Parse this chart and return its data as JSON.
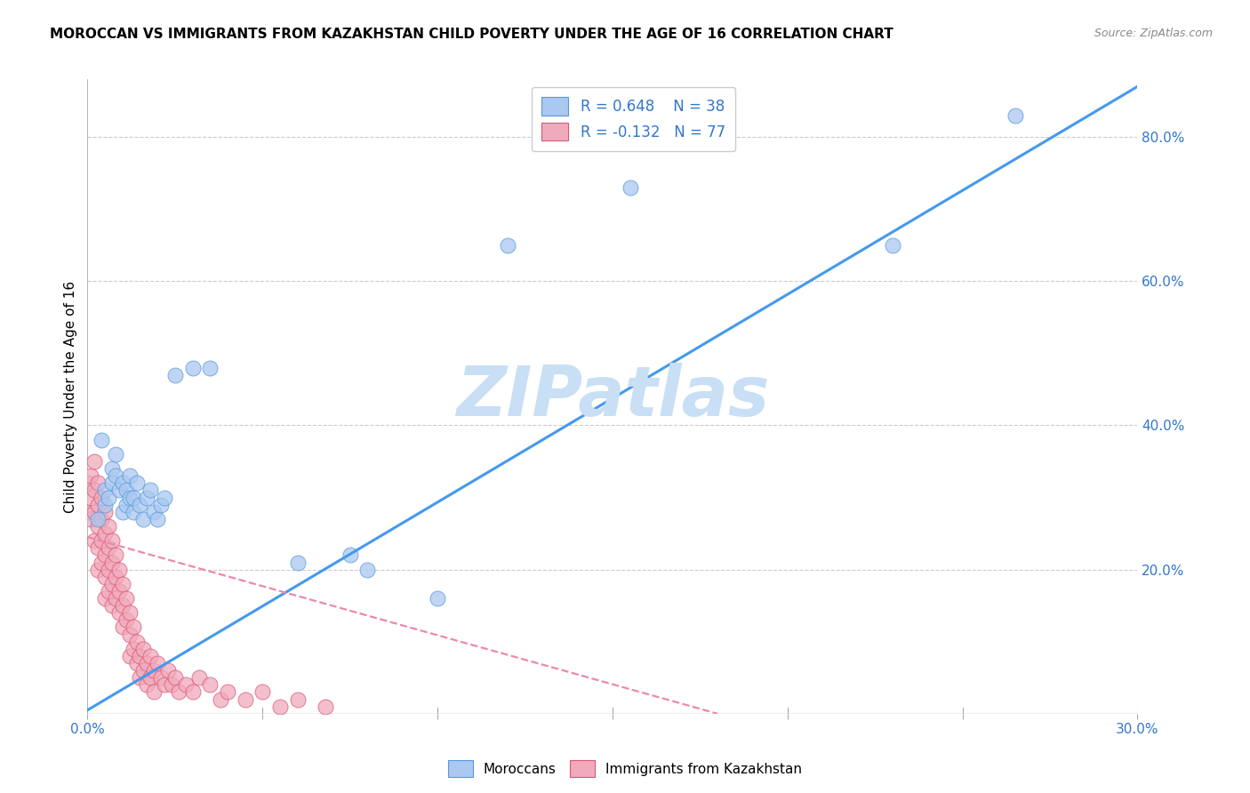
{
  "title": "MOROCCAN VS IMMIGRANTS FROM KAZAKHSTAN CHILD POVERTY UNDER THE AGE OF 16 CORRELATION CHART",
  "source": "Source: ZipAtlas.com",
  "ylabel": "Child Poverty Under the Age of 16",
  "x_min": 0.0,
  "x_max": 0.3,
  "y_min": 0.0,
  "y_max": 0.88,
  "x_ticks": [
    0.0,
    0.05,
    0.1,
    0.15,
    0.2,
    0.25,
    0.3
  ],
  "x_tick_labels": [
    "0.0%",
    "",
    "",
    "",
    "",
    "",
    "30.0%"
  ],
  "y_ticks_right": [
    0.2,
    0.4,
    0.6,
    0.8
  ],
  "y_tick_labels_right": [
    "20.0%",
    "40.0%",
    "60.0%",
    "80.0%"
  ],
  "color_moroccan_fill": "#aac8f0",
  "color_kazakh_fill": "#f0aabb",
  "color_moroccan_edge": "#5599dd",
  "color_kazakh_edge": "#dd5577",
  "color_moroccan_line": "#4499ee",
  "color_kazakh_line": "#ee88aa",
  "watermark": "ZIPatlas",
  "watermark_color": "#c8dff5",
  "label_moroccan": "Moroccans",
  "label_kazakh": "Immigrants from Kazakhstan",
  "moroccan_x": [
    0.003,
    0.004,
    0.005,
    0.005,
    0.006,
    0.007,
    0.007,
    0.008,
    0.008,
    0.009,
    0.01,
    0.01,
    0.011,
    0.011,
    0.012,
    0.012,
    0.013,
    0.013,
    0.014,
    0.015,
    0.016,
    0.017,
    0.018,
    0.019,
    0.02,
    0.021,
    0.022,
    0.025,
    0.03,
    0.035,
    0.06,
    0.075,
    0.08,
    0.1,
    0.12,
    0.155,
    0.23,
    0.265
  ],
  "moroccan_y": [
    0.27,
    0.38,
    0.31,
    0.29,
    0.3,
    0.34,
    0.32,
    0.33,
    0.36,
    0.31,
    0.28,
    0.32,
    0.29,
    0.31,
    0.3,
    0.33,
    0.28,
    0.3,
    0.32,
    0.29,
    0.27,
    0.3,
    0.31,
    0.28,
    0.27,
    0.29,
    0.3,
    0.47,
    0.48,
    0.48,
    0.21,
    0.22,
    0.2,
    0.16,
    0.65,
    0.73,
    0.65,
    0.83
  ],
  "kazakh_x": [
    0.0,
    0.0,
    0.001,
    0.001,
    0.001,
    0.002,
    0.002,
    0.002,
    0.002,
    0.003,
    0.003,
    0.003,
    0.003,
    0.003,
    0.004,
    0.004,
    0.004,
    0.004,
    0.005,
    0.005,
    0.005,
    0.005,
    0.005,
    0.006,
    0.006,
    0.006,
    0.006,
    0.007,
    0.007,
    0.007,
    0.007,
    0.008,
    0.008,
    0.008,
    0.009,
    0.009,
    0.009,
    0.01,
    0.01,
    0.01,
    0.011,
    0.011,
    0.012,
    0.012,
    0.012,
    0.013,
    0.013,
    0.014,
    0.014,
    0.015,
    0.015,
    0.016,
    0.016,
    0.017,
    0.017,
    0.018,
    0.018,
    0.019,
    0.019,
    0.02,
    0.021,
    0.022,
    0.023,
    0.024,
    0.025,
    0.026,
    0.028,
    0.03,
    0.032,
    0.035,
    0.038,
    0.04,
    0.045,
    0.05,
    0.055,
    0.06,
    0.068
  ],
  "kazakh_y": [
    0.32,
    0.28,
    0.33,
    0.3,
    0.27,
    0.35,
    0.31,
    0.28,
    0.24,
    0.32,
    0.29,
    0.26,
    0.23,
    0.2,
    0.3,
    0.27,
    0.24,
    0.21,
    0.28,
    0.25,
    0.22,
    0.19,
    0.16,
    0.26,
    0.23,
    0.2,
    0.17,
    0.24,
    0.21,
    0.18,
    0.15,
    0.22,
    0.19,
    0.16,
    0.2,
    0.17,
    0.14,
    0.18,
    0.15,
    0.12,
    0.16,
    0.13,
    0.14,
    0.11,
    0.08,
    0.12,
    0.09,
    0.1,
    0.07,
    0.08,
    0.05,
    0.09,
    0.06,
    0.07,
    0.04,
    0.08,
    0.05,
    0.06,
    0.03,
    0.07,
    0.05,
    0.04,
    0.06,
    0.04,
    0.05,
    0.03,
    0.04,
    0.03,
    0.05,
    0.04,
    0.02,
    0.03,
    0.02,
    0.03,
    0.01,
    0.02,
    0.01
  ],
  "moroccan_line_x": [
    0.0,
    0.3
  ],
  "moroccan_line_y": [
    0.005,
    0.87
  ],
  "kazakh_line_x": [
    0.0,
    0.18
  ],
  "kazakh_line_y": [
    0.245,
    0.0
  ]
}
